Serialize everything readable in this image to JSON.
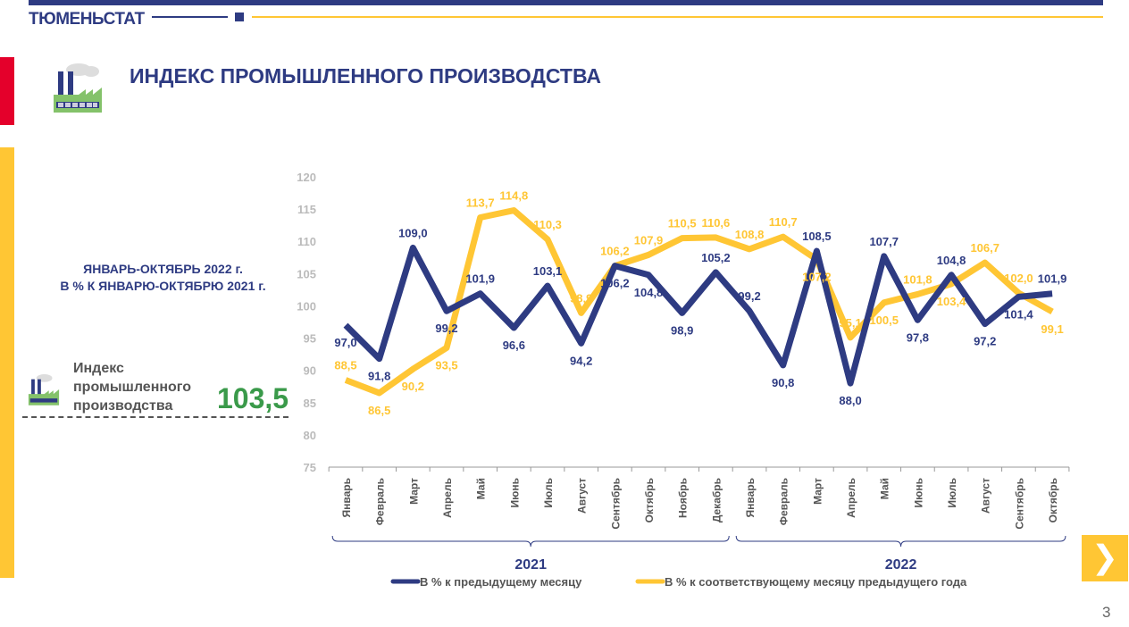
{
  "header": {
    "brand": "ТЮМЕНЬСТАТ",
    "title": "ИНДЕКС ПРОМЫШЛЕННОГО ПРОИЗВОДСТВА"
  },
  "summary": {
    "subtitle_line1": "ЯНВАРЬ-ОКТЯБРЬ 2022 г.",
    "subtitle_line2": "В % К ЯНВАРЮ-ОКТЯБРЮ 2021 г.",
    "label_line1": "Индекс",
    "label_line2": "промышленного",
    "label_line3": "производства",
    "value": "103,5",
    "icon": "factory-icon"
  },
  "page_number": "3",
  "nav": {
    "next_icon": "chevron-right-icon"
  },
  "colors": {
    "blue": "#2e3b82",
    "yellow": "#ffc634",
    "red": "#e4002b",
    "green": "#3a9a4a"
  },
  "chart_data": {
    "type": "line",
    "ylim": [
      75,
      120
    ],
    "yticks": [
      75,
      80,
      85,
      90,
      95,
      100,
      105,
      110,
      115,
      120
    ],
    "grid": false,
    "legend_placement": "bottom",
    "categories": [
      "Январь",
      "Февраль",
      "Март",
      "Апрель",
      "Май",
      "Июнь",
      "Июль",
      "Август",
      "Сентябрь",
      "Октябрь",
      "Ноябрь",
      "Декабрь",
      "Январь",
      "Февраль",
      "Март",
      "Апрель",
      "Май",
      "Июнь",
      "Июль",
      "Август",
      "Сентябрь",
      "Октябрь"
    ],
    "groups": [
      {
        "label": "2021",
        "count": 12
      },
      {
        "label": "2022",
        "count": 10
      }
    ],
    "series": [
      {
        "name": "В % к предыдущему месяцу",
        "color": "#2e3b82",
        "values": [
          97.0,
          91.8,
          109.0,
          99.2,
          101.9,
          96.6,
          103.1,
          94.2,
          106.2,
          104.8,
          98.9,
          105.2,
          99.2,
          90.8,
          108.5,
          88.0,
          107.7,
          97.8,
          104.8,
          97.2,
          101.4,
          101.9
        ],
        "labels": [
          "97,0",
          "91,8",
          "109,0",
          "99,2",
          "101,9",
          "96,6",
          "103,1",
          "94,2",
          "106,2",
          "104,8",
          "98,9",
          "105,2",
          "99,2",
          "90,8",
          "108,5",
          "88,0",
          "107,7",
          "97,8",
          "104,8",
          "97,2",
          "101,4",
          "101,9"
        ]
      },
      {
        "name": "В % к соответствующему месяцу предыдущего года",
        "color": "#ffc634",
        "values": [
          88.5,
          86.5,
          90.2,
          93.5,
          113.7,
          114.8,
          110.3,
          98.9,
          106.2,
          107.9,
          110.5,
          110.6,
          108.8,
          110.7,
          107.2,
          95.1,
          100.5,
          101.8,
          103.4,
          106.7,
          102.0,
          99.1
        ],
        "labels": [
          "88,5",
          "86,5",
          "90,2",
          "93,5",
          "113,7",
          "114,8",
          "110,3",
          "98,9",
          "106,2",
          "107,9",
          "110,5",
          "110,6",
          "108,8",
          "110,7",
          "107,2",
          "95,1",
          "100,5",
          "101,8",
          "103,4",
          "106,7",
          "102,0",
          "99,1"
        ]
      }
    ]
  }
}
